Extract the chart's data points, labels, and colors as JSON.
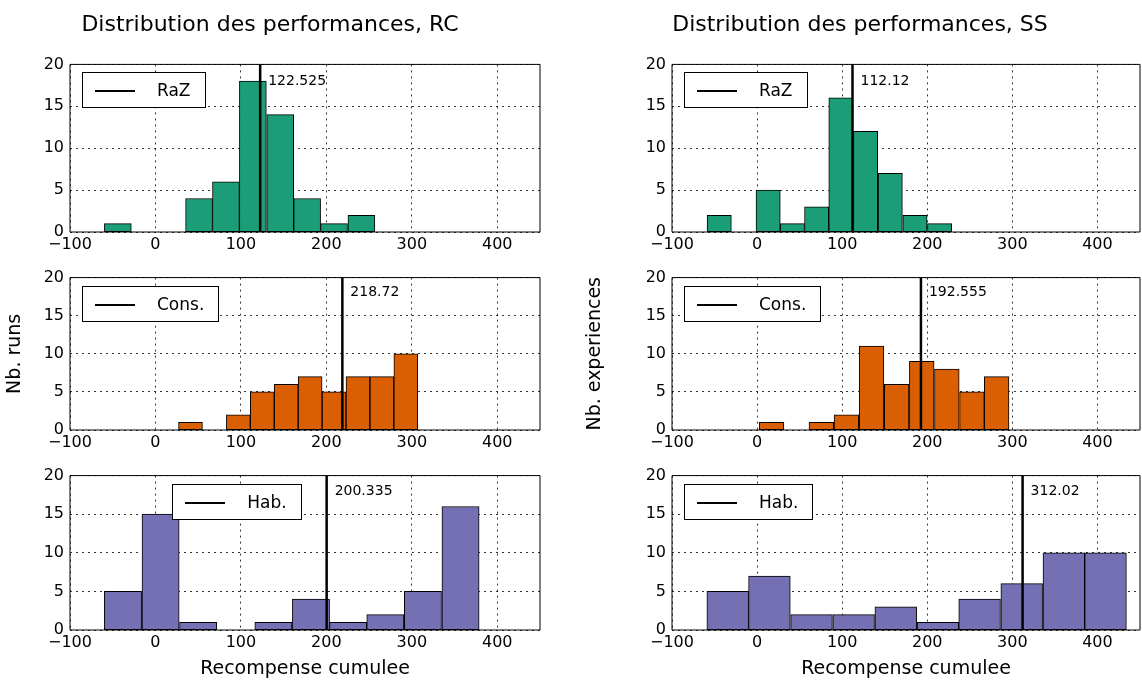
{
  "chart_data": [
    {
      "type": "histogram",
      "title": "Distribution des performances, RC",
      "bins": [
        -60,
        -28,
        3,
        35,
        67,
        98,
        130,
        162,
        193,
        225,
        257
      ],
      "values": [
        1,
        0,
        0,
        4,
        6,
        18,
        14,
        4,
        1,
        2
      ],
      "color": "#1b9e77",
      "xlim": [
        -100,
        450
      ],
      "ylim": [
        0,
        20
      ],
      "xticks": [
        -100,
        0,
        100,
        200,
        300,
        400
      ],
      "yticks": [
        0,
        5,
        10,
        15,
        20
      ],
      "grid": true,
      "legend": "top left",
      "ref_lines": [
        {
          "axis": "x",
          "value": 122.525,
          "label": "RaZ",
          "color": "#000000"
        }
      ],
      "annotations": [
        {
          "text": "122.525",
          "x": 122.525,
          "y": 18
        }
      ]
    },
    {
      "type": "histogram",
      "title": "Distribution des performances, SS",
      "bins": [
        -59,
        -30,
        -1,
        27,
        56,
        84,
        113,
        142,
        171,
        200,
        229
      ],
      "values": [
        2,
        0,
        5,
        1,
        3,
        16,
        12,
        7,
        2,
        1
      ],
      "color": "#1b9e77",
      "xlim": [
        -100,
        450
      ],
      "ylim": [
        0,
        20
      ],
      "xticks": [
        -100,
        0,
        100,
        200,
        300,
        400
      ],
      "yticks": [
        0,
        5,
        10,
        15,
        20
      ],
      "grid": true,
      "legend": "top left",
      "ref_lines": [
        {
          "axis": "x",
          "value": 112.12,
          "label": "RaZ",
          "color": "#000000"
        }
      ],
      "annotations": [
        {
          "text": "112.12",
          "x": 112.12,
          "y": 18
        }
      ]
    },
    {
      "type": "histogram",
      "ylabel": "Nb. runs",
      "bins": [
        27,
        55,
        83,
        111,
        139,
        167,
        195,
        223,
        251,
        279,
        307
      ],
      "values": [
        1,
        0,
        2,
        5,
        6,
        7,
        5,
        7,
        7,
        10
      ],
      "color": "#d95f02",
      "xlim": [
        -100,
        450
      ],
      "ylim": [
        0,
        20
      ],
      "xticks": [
        -100,
        0,
        100,
        200,
        300,
        400
      ],
      "yticks": [
        0,
        5,
        10,
        15,
        20
      ],
      "grid": true,
      "legend": "top left",
      "ref_lines": [
        {
          "axis": "x",
          "value": 218.72,
          "label": "Cons.",
          "color": "#000000"
        }
      ],
      "annotations": [
        {
          "text": "218.72",
          "x": 218.72,
          "y": 18
        }
      ]
    },
    {
      "type": "histogram",
      "ylabel": "Nb. experiences",
      "bins": [
        2,
        32,
        61,
        90,
        120,
        149,
        179,
        208,
        238,
        267,
        296
      ],
      "values": [
        1,
        0,
        1,
        2,
        11,
        6,
        9,
        8,
        5,
        7
      ],
      "color": "#d95f02",
      "xlim": [
        -100,
        450
      ],
      "ylim": [
        0,
        20
      ],
      "xticks": [
        -100,
        0,
        100,
        200,
        300,
        400
      ],
      "yticks": [
        0,
        5,
        10,
        15,
        20
      ],
      "grid": true,
      "legend": "top left",
      "ref_lines": [
        {
          "axis": "x",
          "value": 192.555,
          "label": "Cons.",
          "color": "#000000"
        }
      ],
      "annotations": [
        {
          "text": "192.555",
          "x": 192.555,
          "y": 18
        }
      ]
    },
    {
      "type": "histogram",
      "xlabel": "Recompense cumulee",
      "bins": [
        -60,
        -16,
        28,
        72,
        116,
        160,
        204,
        247,
        291,
        335,
        379
      ],
      "values": [
        5,
        15,
        1,
        0,
        1,
        4,
        1,
        2,
        5,
        16
      ],
      "color": "#7570b3",
      "xlim": [
        -100,
        450
      ],
      "ylim": [
        0,
        20
      ],
      "xticks": [
        -100,
        0,
        100,
        200,
        300,
        400
      ],
      "yticks": [
        0,
        5,
        10,
        15,
        20
      ],
      "grid": true,
      "legend": "top",
      "ref_lines": [
        {
          "axis": "x",
          "value": 200.335,
          "label": "Hab.",
          "color": "#000000"
        }
      ],
      "annotations": [
        {
          "text": "200.335",
          "x": 200.335,
          "y": 18
        }
      ]
    },
    {
      "type": "histogram",
      "xlabel": "Recompense cumulee",
      "bins": [
        -59,
        -10,
        39,
        89,
        138,
        188,
        237,
        286,
        336,
        385,
        434
      ],
      "values": [
        5,
        7,
        2,
        2,
        3,
        1,
        4,
        6,
        10,
        10
      ],
      "color": "#7570b3",
      "xlim": [
        -100,
        450
      ],
      "ylim": [
        0,
        20
      ],
      "xticks": [
        -100,
        0,
        100,
        200,
        300,
        400
      ],
      "yticks": [
        0,
        5,
        10,
        15,
        20
      ],
      "grid": true,
      "legend": "top left",
      "ref_lines": [
        {
          "axis": "x",
          "value": 312.02,
          "label": "Hab.",
          "color": "#000000"
        }
      ],
      "annotations": [
        {
          "text": "312.02",
          "x": 312.02,
          "y": 18
        }
      ]
    }
  ]
}
